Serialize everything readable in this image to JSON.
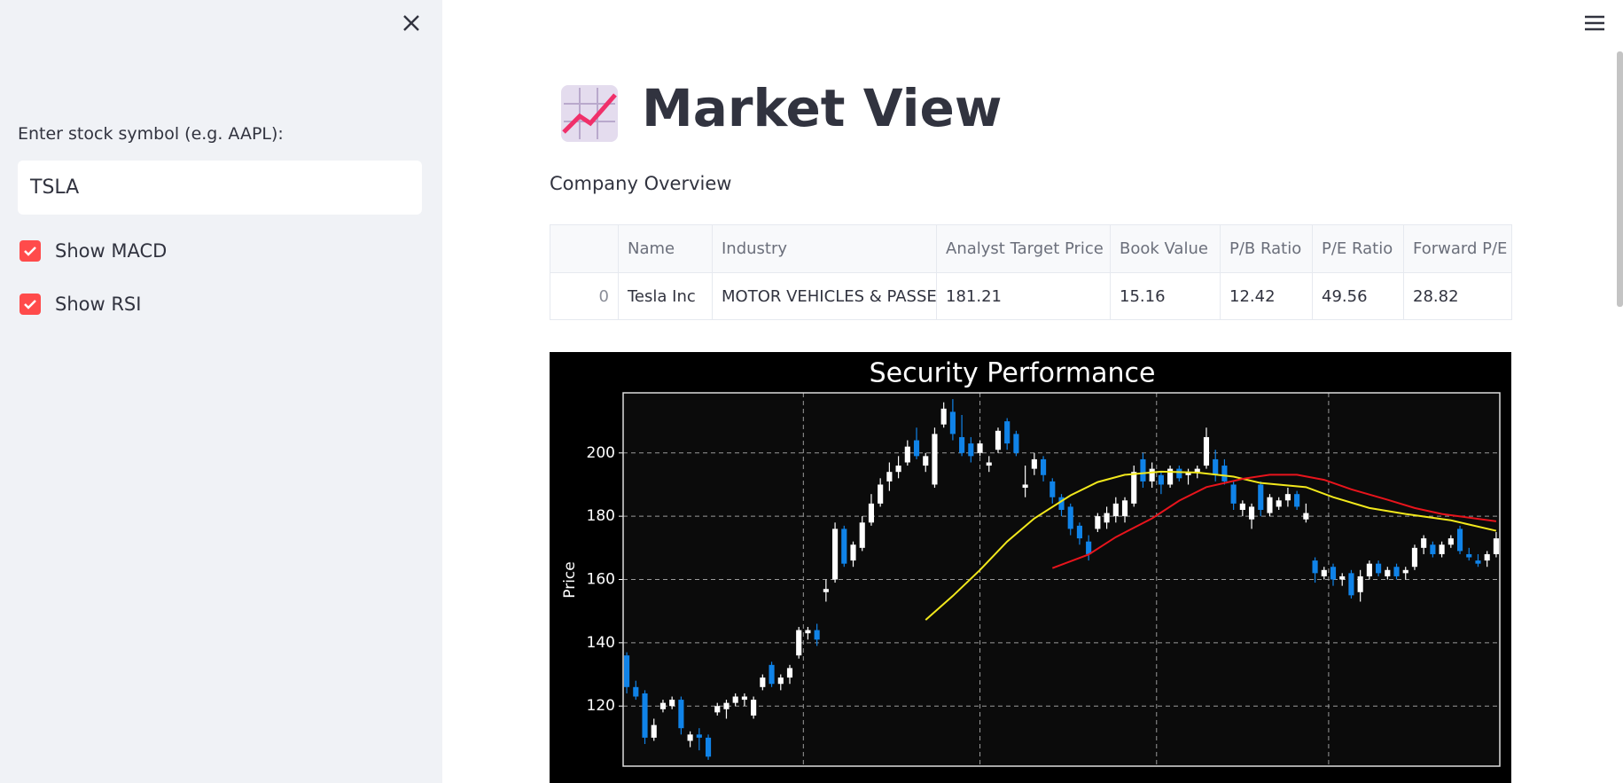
{
  "sidebar": {
    "input_label": "Enter stock symbol (e.g. AAPL):",
    "input_value": "TSLA",
    "checkboxes": [
      "Show MACD",
      "Show RSI"
    ]
  },
  "header": {
    "title": "Market View",
    "subtitle": "Company Overview"
  },
  "table": {
    "columns": [
      "Name",
      "Industry",
      "Analyst Target Price",
      "Book Value",
      "P/B Ratio",
      "P/E Ratio",
      "Forward P/E"
    ],
    "rows": [
      [
        0,
        "Tesla Inc",
        "MOTOR VEHICLES & PASSEN",
        181.21,
        15.16,
        12.42,
        49.56,
        28.82
      ]
    ]
  },
  "chart_data": {
    "type": "candlestick",
    "title": "Security Performance",
    "ylabel": "Price",
    "up_color": "#ffffff",
    "down_color": "#1083e8",
    "grid": true,
    "xlim": [
      -0.4,
      96.4
    ],
    "xticks": [
      19.5,
      39,
      58.5,
      77.5
    ],
    "ylim": [
      101,
      219
    ],
    "yticks": [
      120,
      140,
      160,
      180,
      200
    ],
    "open": [
      136,
      126,
      124,
      110,
      119,
      120,
      122,
      109,
      111,
      110,
      118,
      119,
      121,
      122,
      117,
      126,
      133,
      127,
      129,
      136,
      143,
      144,
      156,
      160,
      176,
      166,
      170,
      178,
      184,
      191,
      194,
      197,
      204,
      196,
      190,
      209,
      213,
      205,
      203,
      200,
      196,
      201,
      210,
      206,
      189,
      195,
      198,
      191,
      186,
      183,
      177,
      172,
      176,
      178,
      180,
      180,
      184,
      198,
      191,
      193,
      190,
      195,
      193,
      194,
      196,
      198,
      196,
      190,
      182,
      179,
      190,
      181,
      183,
      185,
      187,
      179,
      166,
      161,
      164,
      160,
      162,
      156,
      161,
      165,
      161,
      164,
      162,
      164,
      170,
      171,
      168,
      171,
      176,
      168,
      166,
      166,
      168
    ],
    "high": [
      137,
      128,
      125,
      116,
      122,
      123,
      123,
      112,
      113,
      111,
      121,
      122,
      124,
      124,
      123,
      130,
      134,
      130,
      133,
      145,
      145,
      146,
      160,
      178,
      177,
      172,
      180,
      187,
      192,
      197,
      199,
      204,
      208,
      200,
      208,
      216,
      217,
      212,
      205,
      204,
      199,
      208,
      211,
      207,
      196,
      200,
      199,
      192,
      187,
      184,
      178,
      174,
      181,
      183,
      186,
      186,
      196,
      200,
      197,
      194,
      196,
      196,
      195,
      196,
      208,
      201,
      198,
      191,
      185,
      184,
      191,
      187,
      186,
      189,
      188,
      184,
      167,
      164,
      165,
      162,
      163,
      163,
      166,
      166,
      164,
      165,
      164,
      171,
      174,
      172,
      172,
      174,
      177,
      170,
      168,
      169,
      175
    ],
    "low": [
      124,
      122,
      108,
      109,
      118,
      119,
      111,
      107,
      106,
      103,
      117,
      116,
      120,
      120,
      116,
      125,
      126,
      125,
      127,
      135,
      141,
      139,
      153,
      159,
      164,
      164,
      169,
      177,
      183,
      188,
      192,
      196,
      198,
      194,
      189,
      208,
      204,
      199,
      197,
      199,
      194,
      200,
      201,
      199,
      186,
      193,
      191,
      184,
      180,
      174,
      171,
      166,
      175,
      176,
      178,
      178,
      183,
      189,
      189,
      187,
      189,
      191,
      190,
      192,
      195,
      191,
      190,
      182,
      180,
      176,
      180,
      180,
      182,
      183,
      182,
      178,
      159,
      160,
      158,
      158,
      154,
      153,
      160,
      161,
      160,
      160,
      160,
      163,
      168,
      167,
      167,
      170,
      168,
      166,
      164,
      164,
      167
    ],
    "close": [
      126,
      123,
      110,
      114,
      121,
      122,
      113,
      111,
      110,
      104,
      120,
      121,
      123,
      123,
      122,
      129,
      127,
      129,
      132,
      144,
      144,
      141,
      157,
      176,
      165,
      171,
      178,
      184,
      190,
      194,
      196,
      202,
      199,
      199,
      206,
      214,
      206,
      200,
      199,
      203,
      197,
      207,
      203,
      200,
      190,
      198,
      193,
      186,
      182,
      176,
      173,
      168,
      180,
      181,
      184,
      185,
      194,
      191,
      195,
      190,
      195,
      192,
      194,
      195,
      205,
      193,
      191,
      184,
      184,
      183,
      182,
      186,
      185,
      187,
      183,
      181,
      162,
      163,
      160,
      161,
      155,
      161,
      165,
      162,
      163,
      161,
      163,
      170,
      173,
      168,
      171,
      173,
      169,
      167,
      165,
      168,
      173
    ],
    "series": [
      {
        "color": "#f2e81c",
        "x": [
          33,
          36,
          39,
          42,
          45,
          49,
          52,
          55,
          59,
          63,
          67,
          70,
          75,
          78,
          82,
          86,
          91,
          96
        ],
        "values": [
          147.2,
          154.8,
          163,
          172,
          179.3,
          186.6,
          190.8,
          193.1,
          194.1,
          193.8,
          192.5,
          190.5,
          189.2,
          186,
          182.6,
          180.7,
          178.7,
          175.4
        ]
      },
      {
        "color": "#e8141c",
        "x": [
          47,
          51,
          54,
          58,
          61,
          64,
          68,
          71,
          74,
          77,
          80,
          84,
          87,
          90,
          96
        ],
        "values": [
          163.6,
          167.9,
          173.4,
          179.3,
          184.9,
          189.2,
          191.8,
          193.1,
          193.1,
          191.5,
          188.5,
          185.2,
          182.6,
          180.7,
          178.4
        ]
      }
    ]
  }
}
